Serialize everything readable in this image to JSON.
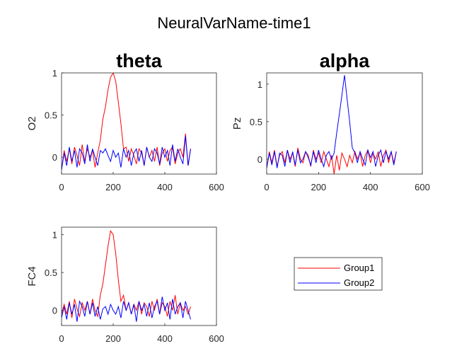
{
  "figure": {
    "title": "NeuralVarName-time1"
  },
  "legend": {
    "placement": "bottom-right",
    "entries": [
      {
        "label": "Group1",
        "color": "#ff0000"
      },
      {
        "label": "Group2",
        "color": "#0000ff"
      }
    ]
  },
  "chart_data": [
    {
      "type": "line",
      "title": "theta",
      "ylabel": "O2",
      "xlim": [
        0,
        600
      ],
      "ylim": [
        -0.2,
        1.0
      ],
      "xticks": [
        0,
        200,
        400,
        600
      ],
      "yticks": [
        0,
        0.5,
        1
      ],
      "xticklabels": [
        "0",
        "200",
        "400",
        "600"
      ],
      "yticklabels": [
        "0",
        "0.5",
        "1"
      ],
      "grid": false,
      "x": [
        0,
        10,
        20,
        30,
        40,
        50,
        60,
        70,
        80,
        90,
        100,
        110,
        120,
        130,
        140,
        150,
        160,
        170,
        180,
        190,
        200,
        210,
        220,
        230,
        240,
        250,
        260,
        270,
        280,
        290,
        300,
        310,
        320,
        330,
        340,
        350,
        360,
        370,
        380,
        390,
        400,
        410,
        420,
        430,
        440,
        450,
        460,
        470,
        480,
        490,
        500
      ],
      "series": [
        {
          "name": "Group1",
          "color": "#ff0000",
          "values": [
            -0.15,
            0.08,
            -0.05,
            0.1,
            -0.08,
            0.12,
            0.02,
            -0.1,
            0.15,
            -0.05,
            0.1,
            0.0,
            0.08,
            -0.12,
            0.05,
            0.2,
            0.45,
            0.6,
            0.8,
            0.95,
            1.0,
            0.9,
            0.65,
            0.4,
            0.1,
            0.12,
            -0.05,
            0.1,
            0.02,
            -0.08,
            0.1,
            0.05,
            -0.1,
            0.12,
            0.0,
            0.08,
            -0.05,
            0.12,
            -0.1,
            0.05,
            0.1,
            -0.05,
            0.08,
            0.12,
            -0.08,
            0.05,
            0.1,
            0.0,
            0.28,
            -0.1,
            0.1
          ]
        },
        {
          "name": "Group2",
          "color": "#0000ff",
          "values": [
            -0.15,
            0.05,
            -0.1,
            0.12,
            -0.05,
            0.08,
            -0.12,
            0.1,
            0.05,
            -0.08,
            0.15,
            -0.05,
            0.1,
            0.0,
            -0.1,
            0.08,
            0.05,
            0.1,
            0.02,
            -0.05,
            0.08,
            0.0,
            0.05,
            -0.12,
            0.1,
            0.0,
            0.08,
            -0.1,
            0.05,
            0.1,
            -0.05,
            0.08,
            -0.1,
            0.12,
            0.0,
            -0.05,
            0.1,
            0.05,
            -0.08,
            0.12,
            0.0,
            0.08,
            -0.1,
            0.15,
            -0.05,
            0.1,
            0.0,
            -0.08,
            0.25,
            -0.1,
            0.1
          ]
        }
      ]
    },
    {
      "type": "line",
      "title": "alpha",
      "ylabel": "Pz",
      "xlim": [
        0,
        600
      ],
      "ylim": [
        -0.2,
        1.15
      ],
      "xticks": [
        0,
        200,
        400,
        600
      ],
      "yticks": [
        0,
        0.5,
        1
      ],
      "xticklabels": [
        "0",
        "200",
        "400",
        "600"
      ],
      "yticklabels": [
        "0",
        "0.5",
        "1"
      ],
      "grid": false,
      "x": [
        0,
        10,
        20,
        30,
        40,
        50,
        60,
        70,
        80,
        90,
        100,
        110,
        120,
        130,
        140,
        150,
        160,
        170,
        180,
        190,
        200,
        210,
        220,
        230,
        240,
        250,
        260,
        270,
        280,
        290,
        300,
        310,
        320,
        330,
        340,
        350,
        360,
        370,
        380,
        390,
        400,
        410,
        420,
        430,
        440,
        450,
        460,
        470,
        480,
        490,
        500
      ],
      "series": [
        {
          "name": "Group1",
          "color": "#ff0000",
          "values": [
            -0.12,
            0.1,
            -0.05,
            0.12,
            -0.1,
            0.05,
            0.1,
            -0.05,
            0.12,
            0.0,
            0.08,
            -0.1,
            0.15,
            0.0,
            -0.05,
            0.1,
            0.05,
            -0.1,
            0.12,
            0.0,
            0.08,
            -0.05,
            0.1,
            0.0,
            -0.1,
            0.05,
            -0.2,
            0.05,
            -0.15,
            0.08,
            0.0,
            -0.1,
            0.05,
            -0.05,
            0.1,
            0.0,
            0.08,
            -0.1,
            0.05,
            0.12,
            -0.05,
            0.08,
            0.0,
            0.1,
            -0.1,
            0.05,
            0.12,
            -0.05,
            0.1,
            -0.05,
            0.1
          ]
        },
        {
          "name": "Group2",
          "color": "#0000ff",
          "values": [
            -0.12,
            0.08,
            -0.08,
            0.1,
            -0.12,
            0.08,
            0.05,
            -0.1,
            0.12,
            -0.05,
            0.1,
            -0.08,
            0.12,
            -0.05,
            0.0,
            0.1,
            0.02,
            -0.08,
            0.1,
            -0.05,
            0.12,
            0.0,
            -0.1,
            0.05,
            0.1,
            0.0,
            0.08,
            0.35,
            0.6,
            0.85,
            1.12,
            0.8,
            0.5,
            0.15,
            0.08,
            -0.05,
            0.1,
            0.0,
            -0.08,
            0.12,
            0.02,
            0.1,
            -0.1,
            0.05,
            0.12,
            -0.05,
            0.1,
            0.0,
            0.1,
            -0.08,
            0.1
          ]
        }
      ]
    },
    {
      "type": "line",
      "title": "",
      "ylabel": "FC4",
      "xlim": [
        0,
        600
      ],
      "ylim": [
        -0.2,
        1.1
      ],
      "xticks": [
        0,
        200,
        400,
        600
      ],
      "yticks": [
        0,
        0.5,
        1
      ],
      "xticklabels": [
        "0",
        "200",
        "400",
        "600"
      ],
      "yticklabels": [
        "0",
        "0.5",
        "1"
      ],
      "grid": false,
      "x": [
        0,
        10,
        20,
        30,
        40,
        50,
        60,
        70,
        80,
        90,
        100,
        110,
        120,
        130,
        140,
        150,
        160,
        170,
        180,
        190,
        200,
        210,
        220,
        230,
        240,
        250,
        260,
        270,
        280,
        290,
        300,
        310,
        320,
        330,
        340,
        350,
        360,
        370,
        380,
        390,
        400,
        410,
        420,
        430,
        440,
        450,
        460,
        470,
        480,
        490,
        500
      ],
      "series": [
        {
          "name": "Group1",
          "color": "#ff0000",
          "values": [
            -0.05,
            0.08,
            -0.05,
            0.12,
            -0.1,
            0.15,
            0.02,
            -0.08,
            0.1,
            0.0,
            0.12,
            -0.05,
            0.15,
            0.0,
            -0.08,
            0.2,
            0.35,
            0.6,
            0.85,
            1.05,
            1.0,
            0.75,
            0.4,
            0.12,
            0.2,
            0.0,
            0.1,
            -0.05,
            0.08,
            0.0,
            0.12,
            -0.05,
            0.1,
            0.05,
            -0.08,
            0.12,
            0.0,
            0.15,
            -0.05,
            0.1,
            0.05,
            -0.08,
            0.12,
            0.0,
            0.2,
            -0.05,
            0.1,
            0.0,
            0.05,
            -0.05,
            0.05
          ]
        },
        {
          "name": "Group2",
          "color": "#0000ff",
          "values": [
            -0.1,
            0.05,
            -0.12,
            0.1,
            -0.05,
            0.08,
            -0.15,
            0.12,
            0.05,
            -0.08,
            0.12,
            -0.05,
            0.1,
            -0.08,
            0.05,
            -0.12,
            0.02,
            0.05,
            -0.05,
            0.08,
            0.0,
            -0.05,
            0.05,
            -0.1,
            0.12,
            0.0,
            0.1,
            -0.05,
            0.08,
            -0.15,
            0.12,
            0.0,
            0.08,
            -0.08,
            0.1,
            -0.1,
            0.05,
            0.12,
            -0.05,
            0.18,
            0.0,
            0.1,
            -0.12,
            0.15,
            -0.05,
            0.05,
            0.1,
            -0.1,
            0.12,
            0.0,
            -0.12
          ]
        }
      ]
    }
  ]
}
